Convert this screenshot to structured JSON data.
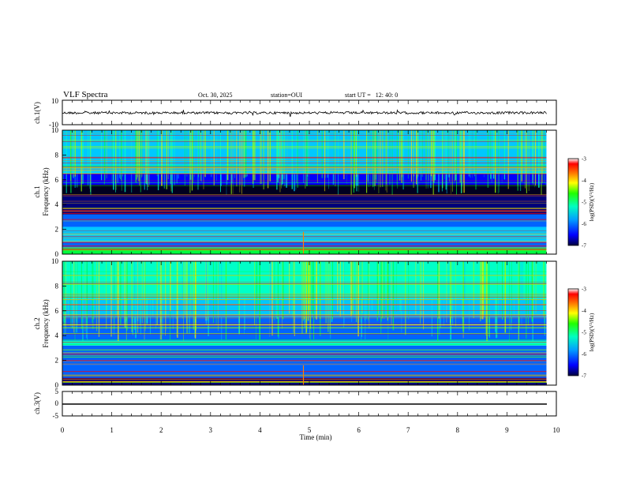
{
  "header": {
    "title": "VLF Spectra",
    "date": "Oct. 30, 2025",
    "station": "station=OUI",
    "start_ut": "start UT =   12: 40: 0"
  },
  "colors": {
    "spectrogram_palette": [
      "#000020",
      "#00007a",
      "#0000ff",
      "#0064ff",
      "#00c8ff",
      "#00ffc8",
      "#00ff40",
      "#a0ff00",
      "#ffe600",
      "#ff8000",
      "#ff0000",
      "#ffffff"
    ],
    "trace": "#000000"
  },
  "chart_data": [
    {
      "type": "line",
      "panel": "ch1-waveform",
      "ylabel": "ch.1(V)",
      "ylim": [
        -10,
        10
      ],
      "yticks": [
        "10",
        "-10"
      ],
      "series": [
        {
          "values_summary": "noisy trace near 0 V across 0–9.8 min"
        }
      ]
    },
    {
      "type": "heatmap",
      "panel": "ch1-spectrogram",
      "ylabel_top": "ch.1",
      "ylabel": "Frequency (kHz)",
      "ylim": [
        0,
        10
      ],
      "xlim": [
        0,
        9.8
      ],
      "yticks": [
        "0",
        "2",
        "4",
        "6",
        "8",
        "10"
      ],
      "colorbar": {
        "label": "log(PSD)(V²/Hz)",
        "range": [
          -7,
          -3
        ],
        "ticks": [
          "-3",
          "-4",
          "-5",
          "-6",
          "-7"
        ]
      }
    },
    {
      "type": "heatmap",
      "panel": "ch2-spectrogram",
      "ylabel_top": "ch.2",
      "ylabel": "Frequency (kHz)",
      "ylim": [
        0,
        10
      ],
      "xlim": [
        0,
        9.8
      ],
      "yticks": [
        "0",
        "2",
        "4",
        "6",
        "8",
        "10"
      ],
      "colorbar": {
        "label": "log(PSD)(V²/Hz)",
        "range": [
          -7,
          -3
        ],
        "ticks": [
          "-3",
          "-4",
          "-5",
          "-6",
          "-7"
        ]
      }
    },
    {
      "type": "line",
      "panel": "ch3-waveform",
      "ylabel": "ch.3(V)",
      "ylim": [
        -5,
        5
      ],
      "yticks": [
        "5",
        "0",
        "-5"
      ],
      "series": [
        {
          "values_summary": "flat line at about -1 V"
        }
      ]
    }
  ],
  "xaxis": {
    "label": "Time (min)",
    "range": [
      0,
      10
    ],
    "ticks": [
      "0",
      "1",
      "2",
      "3",
      "4",
      "5",
      "6",
      "7",
      "8",
      "9",
      "10"
    ]
  }
}
